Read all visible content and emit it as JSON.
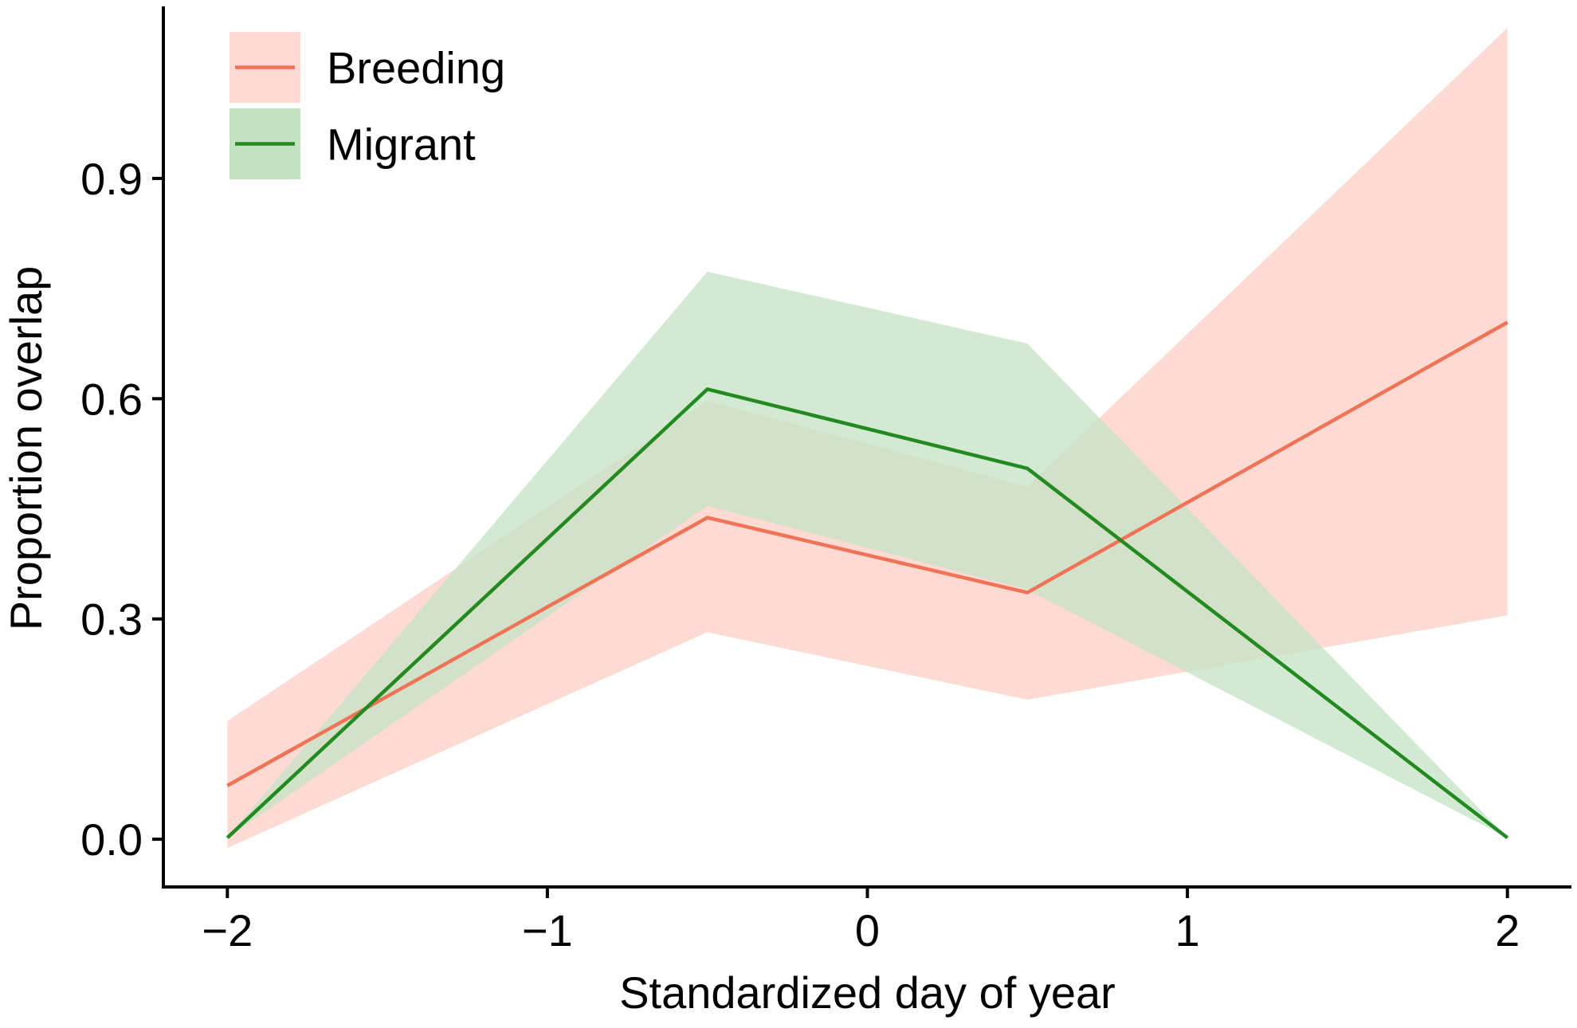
{
  "chart_data": {
    "type": "line",
    "xlabel": "Standardized day of year",
    "ylabel": "Proportion overlap",
    "xlim": [
      -2.2,
      2.2
    ],
    "ylim": [
      -0.065,
      1.13
    ],
    "x_ticks": [
      -2,
      -1,
      0,
      1,
      2
    ],
    "x_tick_labels": [
      "−2",
      "−1",
      "0",
      "1",
      "2"
    ],
    "y_ticks": [
      0.0,
      0.3,
      0.6,
      0.9
    ],
    "y_tick_labels": [
      "0.0",
      "0.3",
      "0.6",
      "0.9"
    ],
    "grid": false,
    "legend_position": "top-left",
    "series": [
      {
        "name": "Breeding",
        "color": "#F07257",
        "ribbon_color": "#FDDAD2",
        "x": [
          -2,
          -0.5,
          0.5,
          2
        ],
        "values": [
          0.073,
          0.438,
          0.336,
          0.704
        ],
        "lower": [
          -0.012,
          0.282,
          0.19,
          0.305
        ],
        "upper": [
          0.161,
          0.597,
          0.48,
          1.105
        ]
      },
      {
        "name": "Migrant",
        "color": "#238A22",
        "ribbon_color": "#C3E3C3",
        "x": [
          -2,
          -0.5,
          0.5,
          2
        ],
        "values": [
          0.002,
          0.613,
          0.505,
          0.002
        ],
        "lower": [
          0.002,
          0.454,
          0.34,
          0.002
        ],
        "upper": [
          0.002,
          0.773,
          0.675,
          0.002
        ]
      }
    ]
  }
}
